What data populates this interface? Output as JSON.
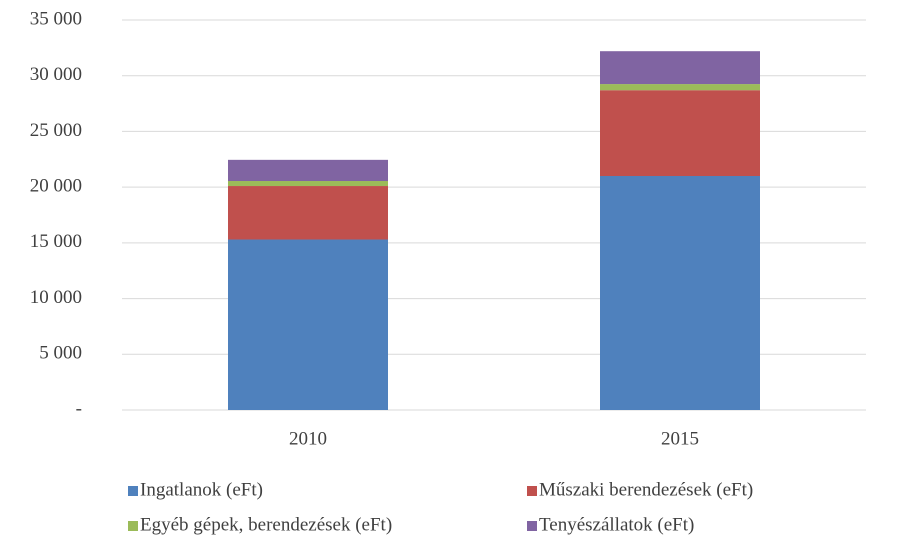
{
  "chart_data": {
    "type": "stacked_bar",
    "categories": [
      "2010",
      "2015"
    ],
    "series": [
      {
        "name": "Ingatlanok (eFt)",
        "color": "#4f81bd",
        "values": [
          15300,
          21000
        ]
      },
      {
        "name": "Műszaki berendezések (eFt)",
        "color": "#c0504d",
        "values": [
          4800,
          7700
        ]
      },
      {
        "name": "Egyéb gépek, berendezések (eFt)",
        "color": "#9bbb59",
        "values": [
          450,
          550
        ]
      },
      {
        "name": "Tenyészállatok (eFt)",
        "color": "#8064a2",
        "values": [
          1900,
          2950
        ]
      }
    ],
    "ylim": [
      0,
      35000
    ],
    "yticks": [
      {
        "value": 0,
        "label": "-"
      },
      {
        "value": 5000,
        "label": "5 000"
      },
      {
        "value": 10000,
        "label": "10 000"
      },
      {
        "value": 15000,
        "label": "15 000"
      },
      {
        "value": 20000,
        "label": "20 000"
      },
      {
        "value": 25000,
        "label": "25 000"
      },
      {
        "value": 30000,
        "label": "30 000"
      },
      {
        "value": 35000,
        "label": "35 000"
      }
    ],
    "grid": true,
    "legend": "bottom"
  }
}
